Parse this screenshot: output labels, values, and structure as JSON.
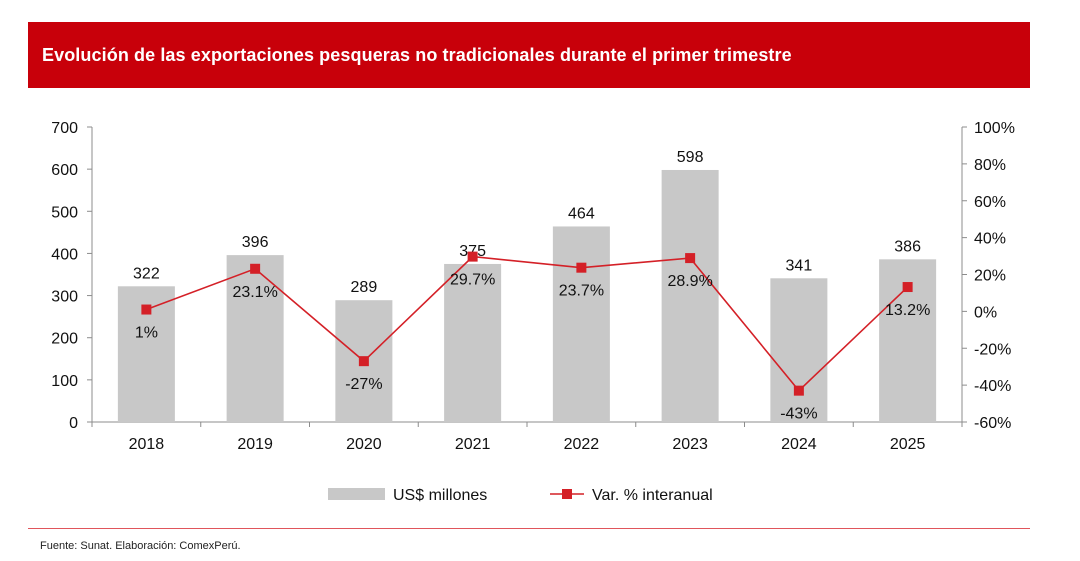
{
  "header": {
    "title": "Evolución de las exportaciones pesqueras no tradicionales durante el primer trimestre"
  },
  "footer": {
    "source": "Fuente: Sunat. Elaboración: ComexPerú."
  },
  "colors": {
    "header_bg": "#c8000a",
    "bar": "#c8c8c8",
    "line": "#d42027",
    "axis_text": "#111111"
  },
  "chart_data": {
    "type": "bar",
    "categories": [
      "2018",
      "2019",
      "2020",
      "2021",
      "2022",
      "2023",
      "2024",
      "2025"
    ],
    "series": [
      {
        "name": "US$ millones",
        "type": "bar",
        "axis": "left",
        "values": [
          322,
          396,
          289,
          375,
          464,
          598,
          341,
          386
        ],
        "labels": [
          "322",
          "396",
          "289",
          "375",
          "464",
          "598",
          "341",
          "386"
        ]
      },
      {
        "name": "Var. % interanual",
        "type": "line",
        "axis": "right",
        "values": [
          1,
          23.1,
          -27,
          29.7,
          23.7,
          28.9,
          -43,
          13.2
        ],
        "labels": [
          "1%",
          "23.1%",
          "-27%",
          "29.7%",
          "23.7%",
          "28.9%",
          "-43%",
          "13.2%"
        ]
      }
    ],
    "left_axis": {
      "min": 0,
      "max": 700,
      "step": 100,
      "ticks": [
        "0",
        "100",
        "200",
        "300",
        "400",
        "500",
        "600",
        "700"
      ]
    },
    "right_axis": {
      "min": -60,
      "max": 100,
      "step": 20,
      "ticks": [
        "-60%",
        "-40%",
        "-20%",
        "0%",
        "20%",
        "40%",
        "60%",
        "80%",
        "100%"
      ]
    },
    "legend": {
      "position": "bottom",
      "items": [
        "US$ millones",
        "Var. % interanual"
      ]
    },
    "grid": false
  }
}
